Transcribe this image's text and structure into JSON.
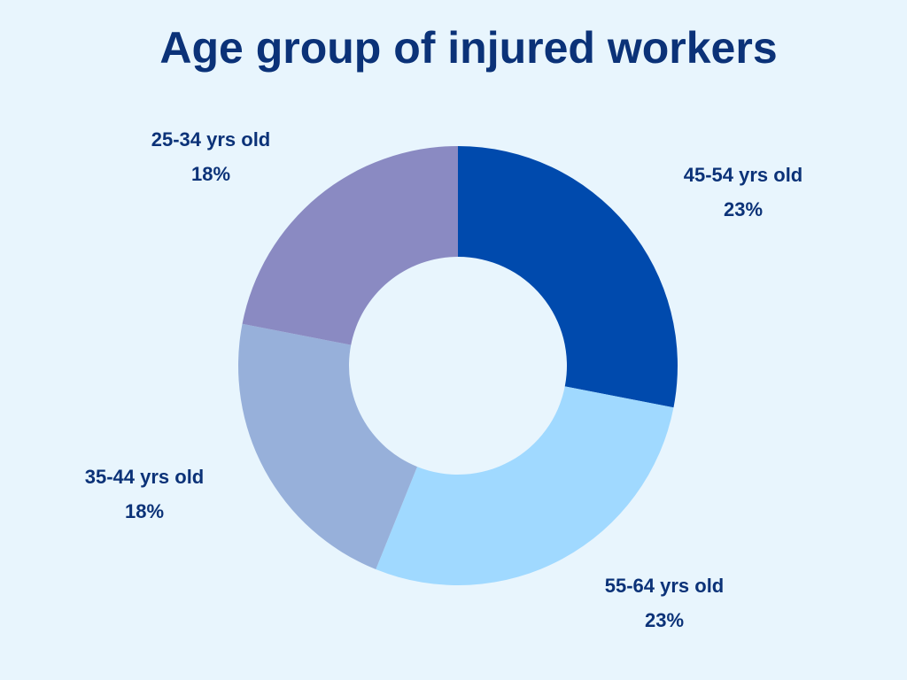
{
  "chart_data": {
    "type": "pie",
    "variant": "donut",
    "title": "Age group of injured workers",
    "slices": [
      {
        "label": "45-54 yrs old",
        "value": 23,
        "value_label": "23%",
        "color": "#004AAD"
      },
      {
        "label": "55-64 yrs old",
        "value": 23,
        "value_label": "23%",
        "color": "#A0D9FF"
      },
      {
        "label": "35-44 yrs old",
        "value": 18,
        "value_label": "18%",
        "color": "#97B0DA"
      },
      {
        "label": "25-34 yrs old",
        "value": 18,
        "value_label": "18%",
        "color": "#8A8AC2"
      }
    ],
    "start_angle": "12 o'clock",
    "direction": "clockwise",
    "legend": "none",
    "data_labels": "outside"
  },
  "colors": {
    "background": "#E8F5FD",
    "title": "#0B3278",
    "label_text": "#0B3278"
  }
}
